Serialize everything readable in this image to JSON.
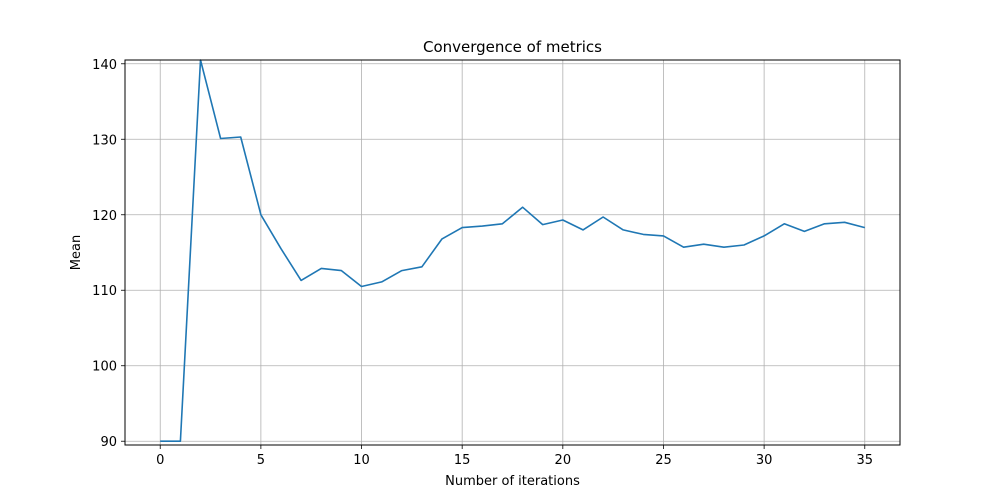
{
  "chart_data": {
    "type": "line",
    "title": "Convergence of metrics",
    "xlabel": "Number of iterations",
    "ylabel": "Mean",
    "xlim": [
      -1.75,
      36.75
    ],
    "ylim": [
      89.5,
      140.5
    ],
    "xticks": [
      0,
      5,
      10,
      15,
      20,
      25,
      30,
      35
    ],
    "yticks": [
      90,
      100,
      110,
      120,
      130,
      140
    ],
    "grid": true,
    "line_color": "#1f77b4",
    "series": [
      {
        "x": [
          0,
          1,
          2,
          3,
          4,
          5,
          6,
          7,
          8,
          9,
          10,
          11,
          12,
          13,
          14,
          15,
          16,
          17,
          18,
          19,
          20,
          21,
          22,
          23,
          24,
          25,
          26,
          27,
          28,
          29,
          30,
          31,
          32,
          33,
          34,
          35
        ],
        "values": [
          90.0,
          90.0,
          140.5,
          130.1,
          130.3,
          120.0,
          115.5,
          111.3,
          112.9,
          112.6,
          110.5,
          111.1,
          112.6,
          113.1,
          116.8,
          118.3,
          118.5,
          118.8,
          121.0,
          118.7,
          119.3,
          118.0,
          119.7,
          118.0,
          117.4,
          117.2,
          115.7,
          116.1,
          115.7,
          116.0,
          117.2,
          118.8,
          117.8,
          118.8,
          119.0,
          118.3
        ]
      }
    ]
  }
}
